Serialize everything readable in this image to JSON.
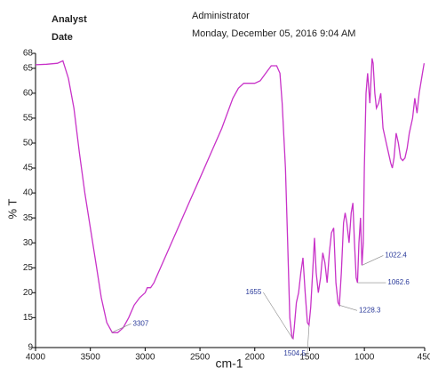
{
  "header": {
    "analyst": "Analyst",
    "date": "Date",
    "user": "Administrator",
    "timestamp": "Monday, December 05, 2016 9:04 AM"
  },
  "chart_data": {
    "type": "line",
    "xlabel": "cm-1",
    "ylabel": "% T",
    "xlim": [
      4000,
      450
    ],
    "ylim": [
      9,
      68
    ],
    "xticks": [
      4000,
      3500,
      3000,
      2500,
      2000,
      1500,
      1000,
      450
    ],
    "yticks": [
      9,
      15,
      20,
      25,
      30,
      35,
      40,
      45,
      50,
      55,
      60,
      65,
      68
    ],
    "series": [
      {
        "color": "#c832c8",
        "x": [
          4000,
          3900,
          3800,
          3750,
          3700,
          3650,
          3600,
          3550,
          3500,
          3450,
          3400,
          3350,
          3300,
          3250,
          3200,
          3150,
          3100,
          3050,
          3000,
          2980,
          2950,
          2920,
          2900,
          2800,
          2700,
          2600,
          2500,
          2400,
          2300,
          2200,
          2150,
          2100,
          2000,
          1950,
          1900,
          1850,
          1800,
          1770,
          1750,
          1720,
          1700,
          1680,
          1660,
          1650,
          1640,
          1620,
          1600,
          1580,
          1560,
          1540,
          1520,
          1505,
          1490,
          1470,
          1455,
          1440,
          1420,
          1400,
          1380,
          1360,
          1340,
          1320,
          1300,
          1280,
          1260,
          1240,
          1228,
          1210,
          1190,
          1175,
          1160,
          1140,
          1120,
          1105,
          1090,
          1075,
          1063,
          1050,
          1035,
          1022,
          1010,
          1000,
          985,
          970,
          950,
          930,
          920,
          905,
          890,
          870,
          850,
          830,
          800,
          780,
          760,
          745,
          730,
          710,
          690,
          670,
          650,
          630,
          610,
          590,
          560,
          540,
          520,
          500,
          470,
          455
        ],
        "values": [
          65.7,
          65.8,
          66,
          66.5,
          63,
          57,
          48,
          40,
          33,
          26,
          19,
          14,
          12,
          12,
          13,
          15,
          17.5,
          19,
          20,
          21,
          21,
          22,
          23,
          28,
          33,
          38,
          43,
          48,
          53,
          59,
          61,
          62,
          62,
          62.5,
          64,
          65.5,
          65.5,
          64,
          58,
          45,
          30,
          15,
          11,
          10.8,
          13,
          18,
          20,
          24,
          27,
          20,
          14,
          13.5,
          17,
          25,
          31,
          24,
          20,
          23,
          28,
          26,
          22,
          28,
          32,
          33,
          22,
          18,
          17.5,
          24,
          34,
          36,
          34,
          30,
          36,
          38,
          30,
          23,
          22,
          30,
          35,
          25.5,
          30,
          45,
          60,
          64,
          58,
          67,
          66,
          60,
          57,
          58,
          60,
          53,
          50,
          48,
          46,
          45,
          47,
          52,
          50,
          47,
          46.5,
          47,
          49,
          52,
          55,
          59,
          56,
          60,
          64,
          66
        ]
      }
    ],
    "annotations": [
      {
        "x": 3307,
        "y": 12,
        "label": "3307"
      },
      {
        "x": 1655,
        "y": 10.8,
        "label": "1655"
      },
      {
        "x": 1504.5,
        "y": 13.5,
        "label": "1504.5"
      },
      {
        "x": 1228.3,
        "y": 17.5,
        "label": "1228.3"
      },
      {
        "x": 1062.6,
        "y": 22,
        "label": "1062.6"
      },
      {
        "x": 1022.4,
        "y": 25.5,
        "label": "1022.4"
      }
    ]
  }
}
